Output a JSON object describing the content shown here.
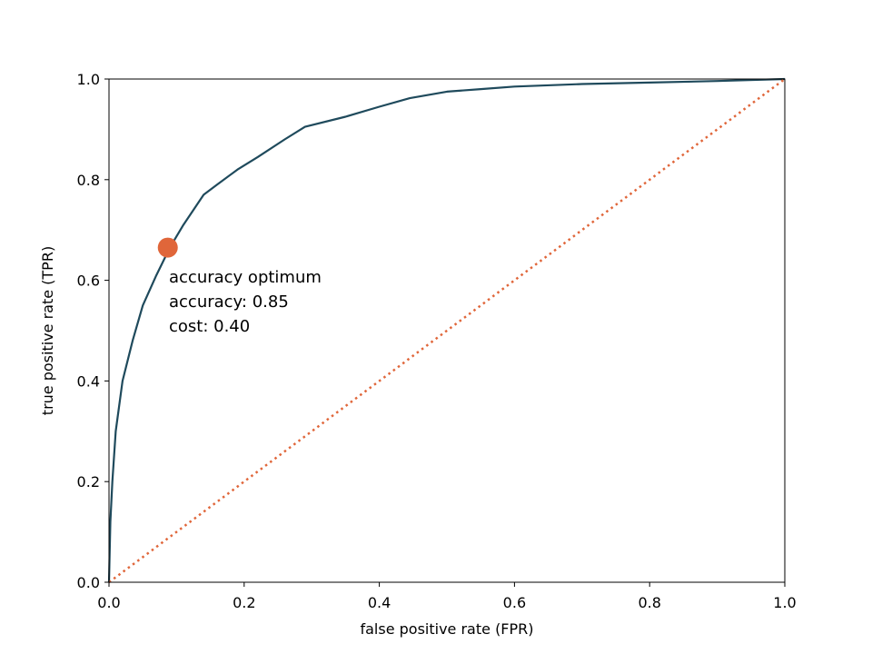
{
  "chart_data": {
    "type": "line",
    "title": "",
    "xlabel": "false positive rate (FPR)",
    "ylabel": "true positive rate (TPR)",
    "xlim": [
      0.0,
      1.0
    ],
    "ylim": [
      0.0,
      1.0
    ],
    "xticks": [
      "0.0",
      "0.2",
      "0.4",
      "0.6",
      "0.8",
      "1.0"
    ],
    "yticks": [
      "0.0",
      "0.2",
      "0.4",
      "0.6",
      "0.8",
      "1.0"
    ],
    "grid": false,
    "series": [
      {
        "style": "solid",
        "color": "#1f4a5c",
        "x": [
          0.0,
          0.002,
          0.005,
          0.01,
          0.02,
          0.035,
          0.05,
          0.07,
          0.09,
          0.11,
          0.14,
          0.16,
          0.19,
          0.22,
          0.26,
          0.29,
          0.35,
          0.4,
          0.445,
          0.5,
          0.55,
          0.6,
          0.7,
          0.8,
          0.9,
          1.0
        ],
        "y": [
          0.0,
          0.12,
          0.2,
          0.3,
          0.4,
          0.48,
          0.55,
          0.61,
          0.665,
          0.71,
          0.77,
          0.79,
          0.82,
          0.845,
          0.88,
          0.905,
          0.925,
          0.945,
          0.962,
          0.975,
          0.98,
          0.985,
          0.99,
          0.993,
          0.996,
          1.0
        ]
      },
      {
        "style": "dotted",
        "color": "#e0663a",
        "x": [
          0.0,
          1.0
        ],
        "y": [
          0.0,
          1.0
        ]
      }
    ],
    "marker": {
      "x": 0.087,
      "y": 0.665,
      "color": "#e0663a"
    },
    "annotation": {
      "lines": [
        "accuracy optimum",
        "accuracy: 0.85",
        "cost: 0.40"
      ]
    }
  }
}
